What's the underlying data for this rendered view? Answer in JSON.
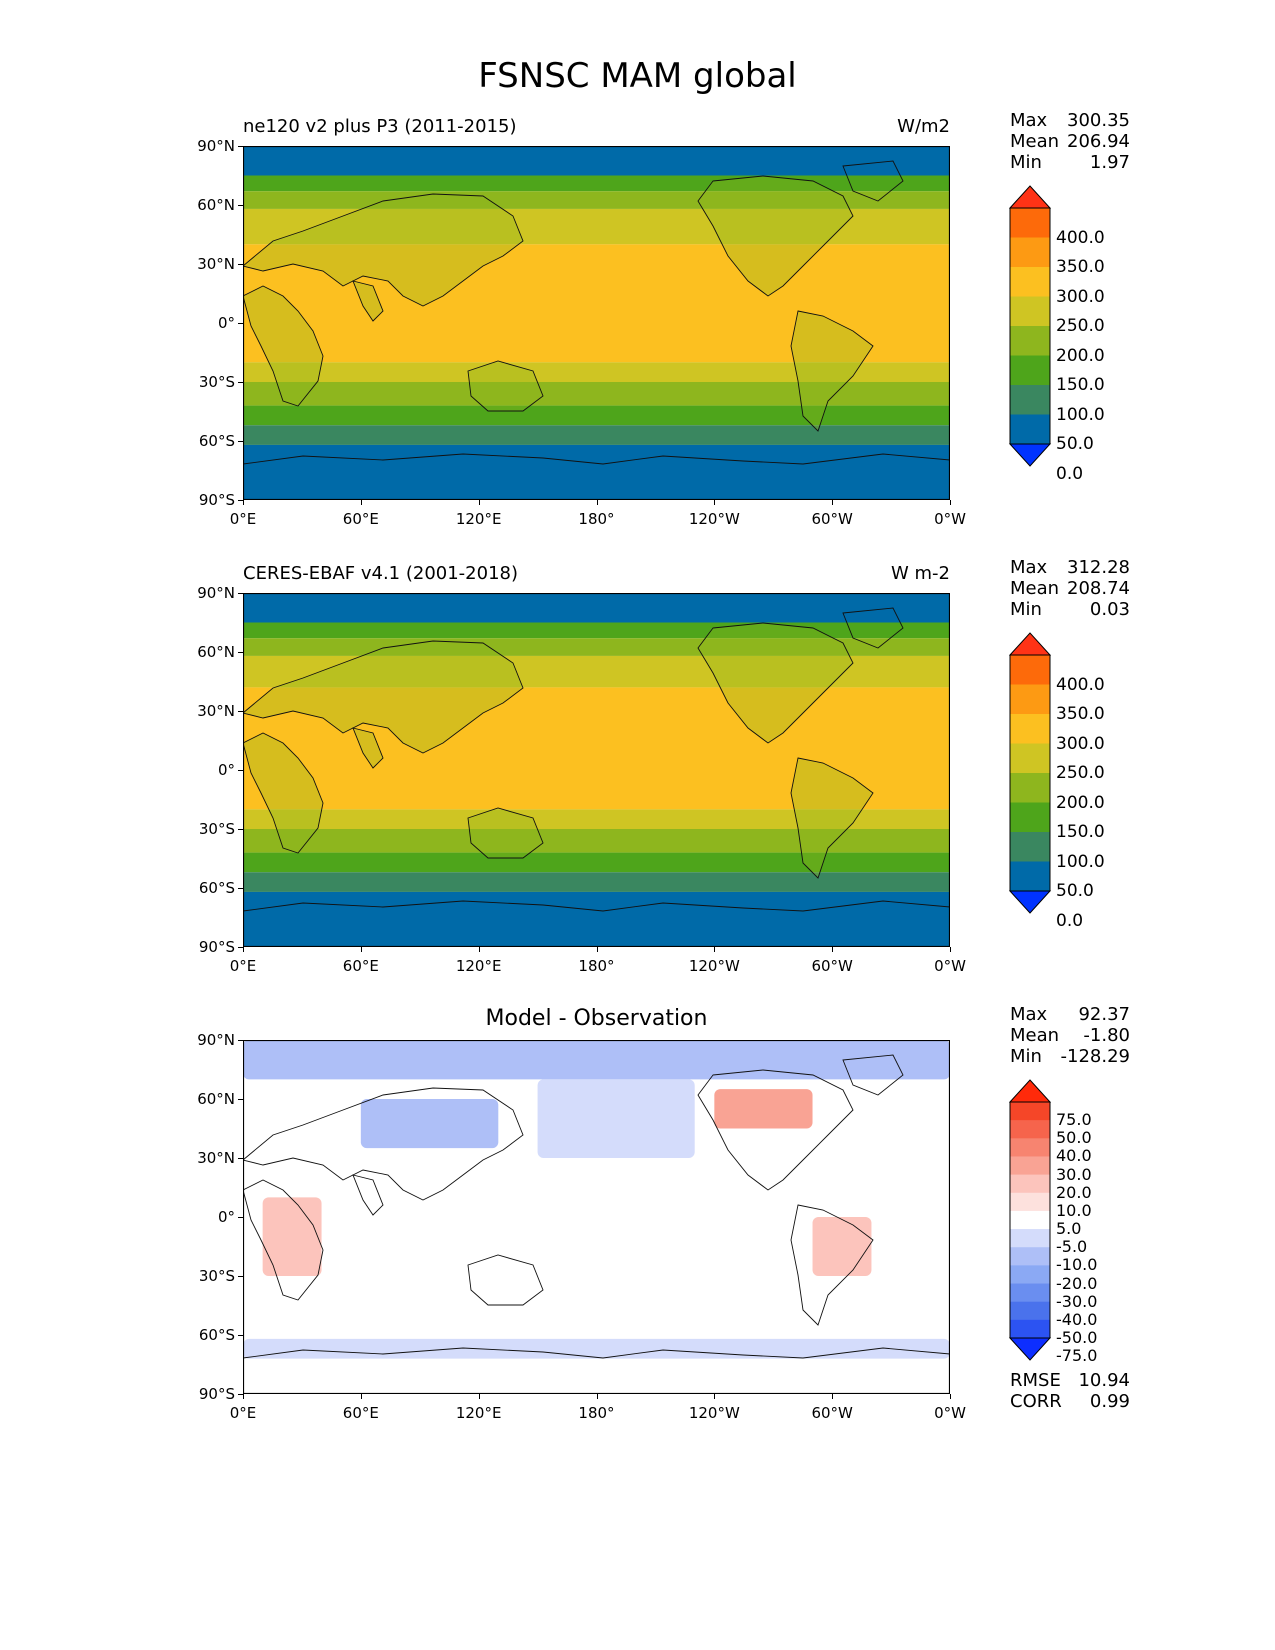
{
  "title": "FSNSC MAM global",
  "x_ticks": [
    "0°E",
    "60°E",
    "120°E",
    "180°",
    "120°W",
    "60°W",
    "0°W"
  ],
  "y_ticks": [
    "90°N",
    "60°N",
    "30°N",
    "0°",
    "30°S",
    "60°S",
    "90°S"
  ],
  "panels": [
    {
      "name": "ne120 v2 plus P3 (2011-2015)",
      "units": "W/m2",
      "stats": {
        "max_label": "Max",
        "max": "300.35",
        "mean_label": "Mean",
        "mean": "206.94",
        "min_label": "Min",
        "min": "1.97"
      },
      "colorbar_ticks": [
        "400.0",
        "350.0",
        "300.0",
        "250.0",
        "200.0",
        "150.0",
        "100.0",
        "50.0",
        "0.0"
      ]
    },
    {
      "name": "CERES-EBAF v4.1 (2001-2018)",
      "units": "W m-2",
      "stats": {
        "max_label": "Max",
        "max": "312.28",
        "mean_label": "Mean",
        "mean": "208.74",
        "min_label": "Min",
        "min": "0.03"
      },
      "colorbar_ticks": [
        "400.0",
        "350.0",
        "300.0",
        "250.0",
        "200.0",
        "150.0",
        "100.0",
        "50.0",
        "0.0"
      ]
    },
    {
      "name": "Model - Observation",
      "stats": {
        "max_label": "Max",
        "max": "92.37",
        "mean_label": "Mean",
        "mean": "-1.80",
        "min_label": "Min",
        "min": "-128.29"
      },
      "colorbar_ticks": [
        "75.0",
        "50.0",
        "40.0",
        "30.0",
        "20.0",
        "10.0",
        "5.0",
        "-5.0",
        "-10.0",
        "-20.0",
        "-30.0",
        "-40.0",
        "-50.0",
        "-75.0"
      ],
      "metrics": {
        "rmse_label": "RMSE",
        "rmse": "10.94",
        "corr_label": "CORR",
        "corr": "0.99"
      }
    }
  ],
  "colors": {
    "seq": [
      "#0033ff",
      "#006aa8",
      "#3a8760",
      "#4ea51b",
      "#8eb61e",
      "#cfc523",
      "#fcc020",
      "#fd9a13",
      "#fd6a0a",
      "#ff3316"
    ],
    "div": [
      "#0d2eff",
      "#2c53f2",
      "#4a72ec",
      "#6a8ef0",
      "#8ba9f4",
      "#aebff7",
      "#d4dcfb",
      "#ffffff",
      "#fde1dd",
      "#fcc4bc",
      "#f9a394",
      "#f78470",
      "#f6644c",
      "#f54628",
      "#ff2a0a"
    ]
  },
  "chart_data": [
    {
      "type": "heatmap",
      "title": "ne120 v2 plus P3 (2011-2015)",
      "units": "W/m2",
      "levels": [
        0,
        50,
        100,
        150,
        200,
        250,
        300,
        350,
        400
      ],
      "zonal_bands": [
        {
          "lat_from": 90,
          "lat_to": 75,
          "value": 25
        },
        {
          "lat_from": 75,
          "lat_to": 67,
          "value": 125
        },
        {
          "lat_from": 67,
          "lat_to": 58,
          "value": 175
        },
        {
          "lat_from": 58,
          "lat_to": 40,
          "value": 225
        },
        {
          "lat_from": 40,
          "lat_to": -20,
          "value": 275
        },
        {
          "lat_from": -20,
          "lat_to": -30,
          "value": 225
        },
        {
          "lat_from": -30,
          "lat_to": -42,
          "value": 175
        },
        {
          "lat_from": -42,
          "lat_to": -52,
          "value": 125
        },
        {
          "lat_from": -52,
          "lat_to": -62,
          "value": 75
        },
        {
          "lat_from": -62,
          "lat_to": -90,
          "value": 25
        }
      ]
    },
    {
      "type": "heatmap",
      "title": "CERES-EBAF v4.1 (2001-2018)",
      "units": "W m-2",
      "levels": [
        0,
        50,
        100,
        150,
        200,
        250,
        300,
        350,
        400
      ],
      "zonal_bands": [
        {
          "lat_from": 90,
          "lat_to": 75,
          "value": 25
        },
        {
          "lat_from": 75,
          "lat_to": 67,
          "value": 125
        },
        {
          "lat_from": 67,
          "lat_to": 58,
          "value": 175
        },
        {
          "lat_from": 58,
          "lat_to": 42,
          "value": 225
        },
        {
          "lat_from": 42,
          "lat_to": -20,
          "value": 275
        },
        {
          "lat_from": -20,
          "lat_to": -30,
          "value": 225
        },
        {
          "lat_from": -30,
          "lat_to": -42,
          "value": 175
        },
        {
          "lat_from": -42,
          "lat_to": -52,
          "value": 125
        },
        {
          "lat_from": -52,
          "lat_to": -62,
          "value": 75
        },
        {
          "lat_from": -62,
          "lat_to": -90,
          "value": 25
        }
      ]
    },
    {
      "type": "heatmap",
      "title": "Model - Observation",
      "levels": [
        -75,
        -50,
        -40,
        -30,
        -20,
        -10,
        -5,
        5,
        10,
        20,
        30,
        40,
        50,
        75
      ],
      "regions": [
        {
          "lat_from": 90,
          "lat_to": 70,
          "value": -15
        },
        {
          "lat_from": 70,
          "lat_to": 30,
          "lon_from": 150,
          "lon_to": 230,
          "value": -10
        },
        {
          "lat_from": 60,
          "lat_to": 35,
          "lon_from": 60,
          "lon_to": 130,
          "value": -20
        },
        {
          "lat_from": 65,
          "lat_to": 45,
          "lon_from": 240,
          "lon_to": 290,
          "value": 20
        },
        {
          "lat_from": 0,
          "lat_to": -30,
          "lon_from": 290,
          "lon_to": 320,
          "value": 15
        },
        {
          "lat_from": 10,
          "lat_to": -30,
          "lon_from": 10,
          "lon_to": 40,
          "value": 10
        },
        {
          "lat_from": -62,
          "lat_to": -72,
          "value": -8
        }
      ]
    }
  ]
}
